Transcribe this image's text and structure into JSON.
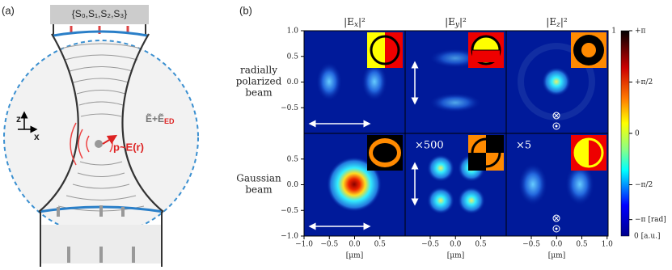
{
  "panel_a": {
    "label": "(a)",
    "stokes": "{S₀,S₁,S₂,S₃}",
    "field": "Ẽ+Ẽ",
    "field_sub": "ED",
    "axis_z": "z",
    "axis_x": "x",
    "dipole": "p~E(r)"
  },
  "panel_b": {
    "label": "(b)",
    "columns": [
      {
        "base": "|E",
        "sub": "x",
        "sup": "|²"
      },
      {
        "base": "|E",
        "sub": "y",
        "sup": "|²"
      },
      {
        "base": "|E",
        "sub": "z",
        "sup": "|²"
      }
    ],
    "rows": [
      [
        "radially",
        "polarized",
        "beam"
      ],
      [
        "Gaussian",
        "beam"
      ]
    ],
    "yticks_top": [
      "1.0",
      "0.5",
      "0.0",
      "−0.5"
    ],
    "yticks_bottom": [
      "0.5",
      "0.0",
      "−0.5",
      "−1.0"
    ],
    "xticks": [
      [
        "−1.0",
        "−0.5",
        "0.0",
        "0.5"
      ],
      [
        "−0.5",
        "0.0",
        "0.5"
      ],
      [
        "−0.5",
        "0.0",
        "0.5",
        "1.0"
      ]
    ],
    "x_unit": "[µm]",
    "scale_ey": "×500",
    "scale_ez": "×5",
    "colorbar_left": [
      "1",
      "0 [a.u.]"
    ],
    "colorbar_right": [
      "+π",
      "+π/2",
      "0",
      "−π/2",
      "−π  [rad]"
    ]
  }
}
